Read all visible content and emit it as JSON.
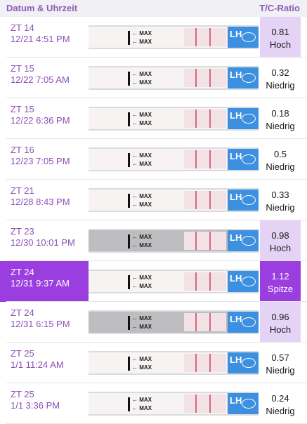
{
  "header": {
    "left": "Datum & Uhrzeit",
    "right": "T/C-Ratio"
  },
  "tests": [
    {
      "zt": "ZT 14",
      "datetime": "12/21 4:51 PM",
      "ratio": "0.81",
      "level": "Hoch"
    },
    {
      "zt": "ZT 15",
      "datetime": "12/22 7:05 AM",
      "ratio": "0.32",
      "level": "Niedrig"
    },
    {
      "zt": "ZT 15",
      "datetime": "12/22 6:36 PM",
      "ratio": "0.18",
      "level": "Niedrig"
    },
    {
      "zt": "ZT 16",
      "datetime": "12/23 7:05 PM",
      "ratio": "0.5",
      "level": "Niedrig"
    },
    {
      "zt": "ZT 21",
      "datetime": "12/28 8:43 PM",
      "ratio": "0.33",
      "level": "Niedrig"
    },
    {
      "zt": "ZT 23",
      "datetime": "12/30 10:01 PM",
      "ratio": "0.98",
      "level": "Hoch"
    },
    {
      "zt": "ZT 24",
      "datetime": "12/31 9:37 AM",
      "ratio": "1.12",
      "level": "Spitze"
    },
    {
      "zt": "ZT 24",
      "datetime": "12/31 6:15 PM",
      "ratio": "0.96",
      "level": "Hoch"
    },
    {
      "zt": "ZT 25",
      "datetime": "1/1 11:24 AM",
      "ratio": "0.57",
      "level": "Niedrig"
    },
    {
      "zt": "ZT 25",
      "datetime": "1/1 3:36 PM",
      "ratio": "0.24",
      "level": "Niedrig"
    }
  ],
  "strip": {
    "max_label": "← MAX",
    "brand_label": "LH"
  },
  "colors": {
    "accent": "#9b3ee0",
    "high_bg": "#e5d3f5",
    "text_purple": "#8e4fb8"
  }
}
